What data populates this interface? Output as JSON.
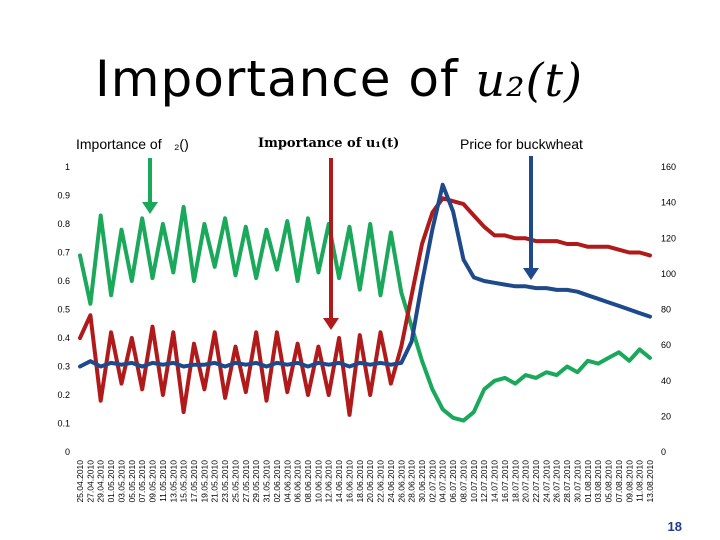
{
  "slide": {
    "title_text": "Importance of ",
    "title_math": "u₂(t)",
    "page_number": "18"
  },
  "annotations": [
    {
      "text": "Importance of ₂(\u0003)\u0003\u0003",
      "arrow_color": "#1aa85b"
    },
    {
      "text": "Importance of u₁(t)",
      "arrow_color": "#b11a1a"
    },
    {
      "text": "Price for buckwheat",
      "arrow_color": "#1e4a8c"
    }
  ],
  "chart_data": {
    "type": "line",
    "x": [
      "25.04.2010",
      "27.04.2010",
      "29.04.2010",
      "01.05.2010",
      "03.05.2010",
      "05.05.2010",
      "07.05.2010",
      "09.05.2010",
      "11.05.2010",
      "13.05.2010",
      "15.05.2010",
      "17.05.2010",
      "19.05.2010",
      "21.05.2010",
      "23.05.2010",
      "25.05.2010",
      "27.05.2010",
      "29.05.2010",
      "31.05.2010",
      "02.06.2010",
      "04.06.2010",
      "06.06.2010",
      "08.06.2010",
      "10.06.2010",
      "12.06.2010",
      "14.06.2010",
      "16.06.2010",
      "18.06.2010",
      "20.06.2010",
      "22.06.2010",
      "24.06.2010",
      "26.06.2010",
      "28.06.2010",
      "30.06.2010",
      "02.07.2010",
      "04.07.2010",
      "06.07.2010",
      "08.07.2010",
      "10.07.2010",
      "12.07.2010",
      "14.07.2010",
      "16.07.2010",
      "18.07.2010",
      "20.07.2010",
      "22.07.2010",
      "24.07.2010",
      "26.07.2010",
      "28.07.2010",
      "30.07.2010",
      "01.08.2010",
      "03.08.2010",
      "05.08.2010",
      "07.08.2010",
      "09.08.2010",
      "11.08.2010",
      "13.08.2010"
    ],
    "series": [
      {
        "name": "Importance of u2(t)",
        "axis": "left",
        "color": "#1aa85b",
        "values": [
          0.69,
          0.52,
          0.83,
          0.55,
          0.78,
          0.6,
          0.82,
          0.61,
          0.8,
          0.63,
          0.86,
          0.6,
          0.8,
          0.65,
          0.82,
          0.62,
          0.79,
          0.61,
          0.78,
          0.64,
          0.81,
          0.6,
          0.82,
          0.63,
          0.8,
          0.61,
          0.79,
          0.57,
          0.8,
          0.55,
          0.77,
          0.56,
          0.44,
          0.32,
          0.22,
          0.15,
          0.12,
          0.11,
          0.14,
          0.22,
          0.25,
          0.26,
          0.24,
          0.27,
          0.26,
          0.28,
          0.27,
          0.3,
          0.28,
          0.32,
          0.31,
          0.33,
          0.35,
          0.32,
          0.36,
          0.33
        ]
      },
      {
        "name": "Importance of u1(t)",
        "axis": "left",
        "color": "#b11a1a",
        "values": [
          0.4,
          0.48,
          0.18,
          0.42,
          0.24,
          0.4,
          0.22,
          0.44,
          0.2,
          0.42,
          0.14,
          0.38,
          0.22,
          0.42,
          0.19,
          0.37,
          0.21,
          0.42,
          0.18,
          0.42,
          0.21,
          0.38,
          0.2,
          0.37,
          0.2,
          0.4,
          0.13,
          0.41,
          0.2,
          0.42,
          0.24,
          0.37,
          0.55,
          0.73,
          0.84,
          0.89,
          0.88,
          0.87,
          0.83,
          0.79,
          0.76,
          0.76,
          0.75,
          0.75,
          0.74,
          0.74,
          0.74,
          0.73,
          0.73,
          0.72,
          0.72,
          0.72,
          0.71,
          0.7,
          0.7,
          0.69
        ]
      },
      {
        "name": "Price for buckwheat",
        "axis": "right",
        "color": "#1e4a8c",
        "values": [
          48,
          51,
          48,
          50,
          49,
          50,
          48,
          50,
          49,
          50,
          48,
          49,
          49,
          50,
          48,
          50,
          49,
          50,
          48,
          50,
          49,
          50,
          48,
          50,
          49,
          50,
          48,
          50,
          49,
          50,
          49,
          50,
          62,
          95,
          125,
          150,
          135,
          108,
          98,
          96,
          95,
          94,
          93,
          93,
          92,
          92,
          91,
          91,
          90,
          88,
          86,
          84,
          82,
          80,
          78,
          76
        ]
      }
    ],
    "ylim_left": [
      0,
      1
    ],
    "yticks_left": [
      "0",
      "0.1",
      "0.2",
      "0.3",
      "0.4",
      "0.5",
      "0.6",
      "0.7",
      "0.8",
      "0.9",
      "1"
    ],
    "ylim_right": [
      0,
      160
    ],
    "yticks_right": [
      "0",
      "20",
      "40",
      "60",
      "80",
      "100",
      "120",
      "140",
      "160"
    ],
    "grid": false
  }
}
